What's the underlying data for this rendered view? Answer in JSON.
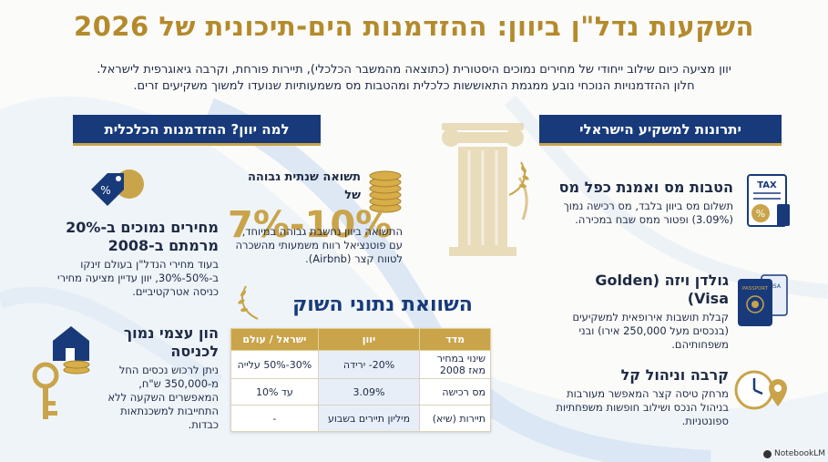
{
  "title": "השקעות נדל\"ן ביוון: ההזדמנות הים-תיכונית של 2026",
  "subtitle": {
    "line1": "יוון מציעה כיום שילוב ייחודי של מחירים נמוכים היסטורית (כתוצאה מהמשבר הכלכלי), תיירות פורחת, וקרבה גיאוגרפית לישראל.",
    "line2": "חלון ההזדמנויות הנוכחי נובע ממגמת התאוששות כלכלית ומהטבות מס משמעותיות שנועדו למשוך משקיעים זרים."
  },
  "sections": {
    "right_header": "יתרונות למשקיע הישראלי",
    "left_header": "למה יוון? ההזדמנות הכלכלית"
  },
  "advantages": [
    {
      "title": "הטבות מס ואמנת כפל מס",
      "text": "תשלום מס ביוון בלבד, מס רכישה נמוך (3.09%) ופטור ממס שבח במכירה."
    },
    {
      "title": "גולדן ויזה (Golden Visa)",
      "text": "קבלת תושבות אירופאית למשקיעים (בנכסים מעל 250,000 אירו) ובני משפחותיהם."
    },
    {
      "title": "קרבה וניהול קל",
      "text": "מרחק טיסה קצר המאפשר מעורבות בניהול הנכס ושילוב חופשות משפחתיות ספונטניות."
    }
  ],
  "opportunity": [
    {
      "title": "מחירים נמוכים ב-20% מרמתם ב-2008",
      "text": "בעוד מחירי הנדל\"ן בעולם זינקו ב-50%-30%, יוון עדיין מציעה מחירי כניסה אטרקטיביים."
    },
    {
      "title": "הון עצמי נמוך לכניסה",
      "text": "ניתן לרכוש נכסים החל מ-350,000 ש\"ח, המאפשרים השקעה ללא התחייבות למשכנתאות כבדות."
    }
  ],
  "returns": {
    "heading": "תשואה שנתית גבוהה של",
    "value": "7%-10%",
    "text": "התשואה ביוון נחשבת גבוהה במיוחד, עם פוטנציאל רווח משמעותי מהשכרה לטווח קצר (Airbnb)."
  },
  "comparison": {
    "title": "השוואת נתוני השוק",
    "headers": {
      "metric": "מדד",
      "greece": "יוון",
      "israel": "ישראל / עולם"
    },
    "rows": [
      {
        "metric": "שינוי במחיר מאז 2008",
        "greece": "20%- ירידה",
        "israel": "30%-50% עלייה"
      },
      {
        "metric": "מס רכישה",
        "greece": "3.09%",
        "israel": "עד 10%"
      },
      {
        "metric": "תיירות (שיא)",
        "greece": "מיליון תיירים בשבוע",
        "israel": "-"
      }
    ]
  },
  "icon_labels": {
    "tax": "TAX",
    "passport": "PASSPORT",
    "visa": "VISA"
  },
  "footer": "NotebookLM",
  "colors": {
    "navy": "#183a7a",
    "gold": "#c9a44a",
    "text": "#1e2a44",
    "light_blue": "#e7eef8"
  }
}
